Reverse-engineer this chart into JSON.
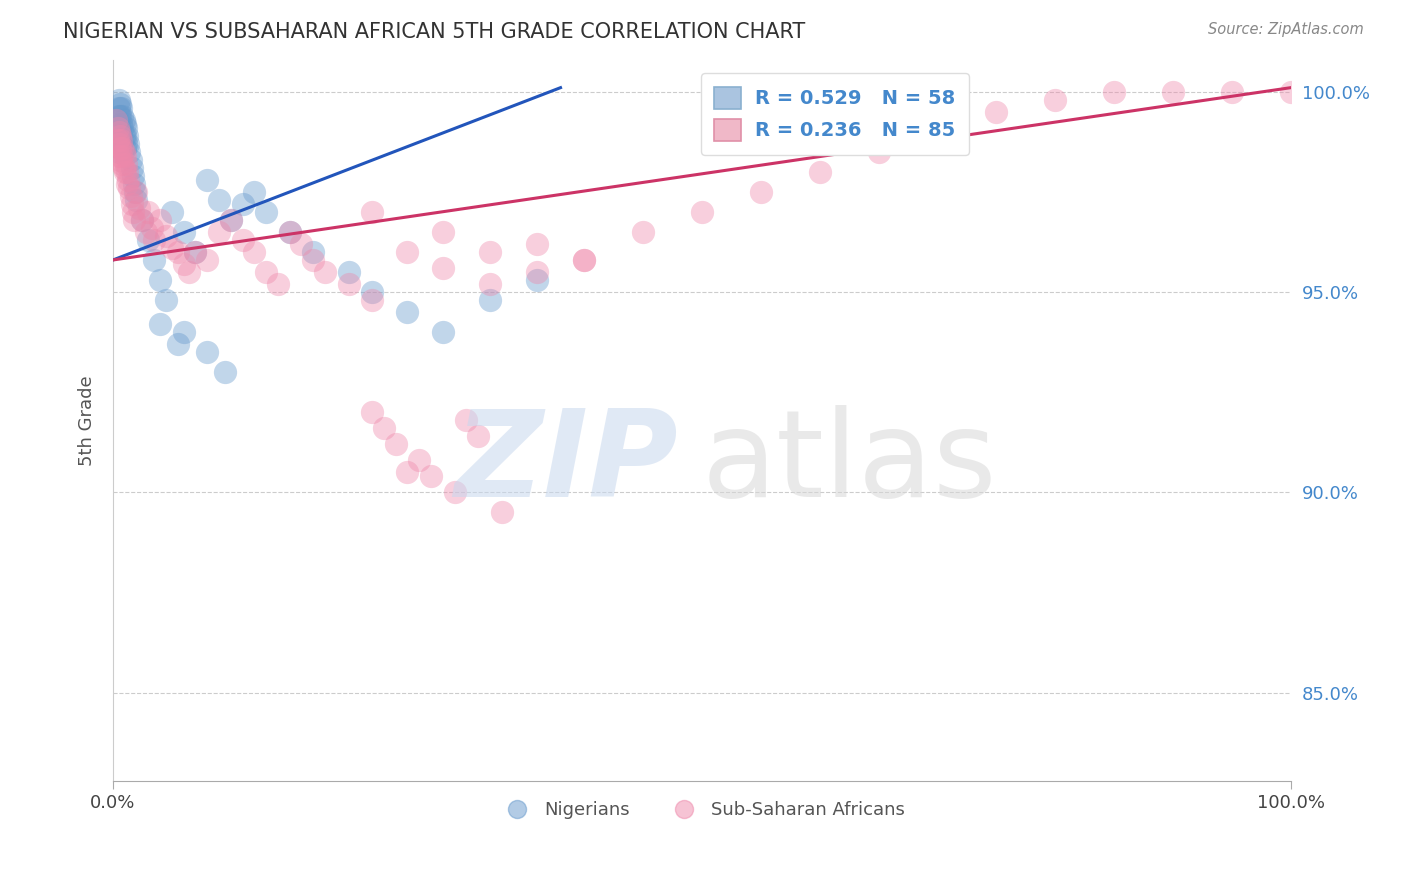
{
  "title": "NIGERIAN VS SUBSAHARAN AFRICAN 5TH GRADE CORRELATION CHART",
  "source_text": "Source: ZipAtlas.com",
  "ylabel": "5th Grade",
  "ytick_labels": [
    "85.0%",
    "90.0%",
    "95.0%",
    "100.0%"
  ],
  "ytick_values": [
    0.85,
    0.9,
    0.95,
    1.0
  ],
  "xlim": [
    0.0,
    1.0
  ],
  "ylim": [
    0.828,
    1.008
  ],
  "legend_bottom": [
    "Nigerians",
    "Sub-Saharan Africans"
  ],
  "blue_color": "#6699cc",
  "pink_color": "#ee88aa",
  "blue_line_color": "#2255bb",
  "pink_line_color": "#cc3366",
  "blue_line": {
    "x0": 0.0,
    "x1": 0.38,
    "y0": 0.958,
    "y1": 1.001
  },
  "pink_line": {
    "x0": 0.0,
    "x1": 1.0,
    "y0": 0.958,
    "y1": 1.001
  },
  "grid_color": "#cccccc",
  "background_color": "#ffffff",
  "R_blue": 0.529,
  "N_blue": 58,
  "R_pink": 0.236,
  "N_pink": 85,
  "blue_x": [
    0.005,
    0.005,
    0.005,
    0.005,
    0.005,
    0.005,
    0.006,
    0.006,
    0.006,
    0.006,
    0.007,
    0.007,
    0.007,
    0.008,
    0.008,
    0.009,
    0.009,
    0.01,
    0.01,
    0.01,
    0.011,
    0.011,
    0.012,
    0.013,
    0.014,
    0.015,
    0.016,
    0.017,
    0.018,
    0.019,
    0.02,
    0.025,
    0.03,
    0.035,
    0.04,
    0.045,
    0.05,
    0.06,
    0.07,
    0.08,
    0.09,
    0.1,
    0.11,
    0.12,
    0.13,
    0.15,
    0.17,
    0.2,
    0.22,
    0.25,
    0.28,
    0.32,
    0.36,
    0.06,
    0.08,
    0.095,
    0.04,
    0.055
  ],
  "blue_y": [
    0.998,
    0.996,
    0.994,
    0.991,
    0.988,
    0.985,
    0.997,
    0.994,
    0.991,
    0.988,
    0.996,
    0.992,
    0.989,
    0.994,
    0.991,
    0.993,
    0.989,
    0.992,
    0.989,
    0.986,
    0.991,
    0.987,
    0.989,
    0.987,
    0.985,
    0.983,
    0.981,
    0.979,
    0.977,
    0.975,
    0.973,
    0.968,
    0.963,
    0.958,
    0.953,
    0.948,
    0.97,
    0.965,
    0.96,
    0.978,
    0.973,
    0.968,
    0.972,
    0.975,
    0.97,
    0.965,
    0.96,
    0.955,
    0.95,
    0.945,
    0.94,
    0.948,
    0.953,
    0.94,
    0.935,
    0.93,
    0.942,
    0.937
  ],
  "pink_x": [
    0.003,
    0.004,
    0.004,
    0.005,
    0.005,
    0.005,
    0.006,
    0.006,
    0.006,
    0.007,
    0.007,
    0.008,
    0.008,
    0.009,
    0.009,
    0.01,
    0.01,
    0.011,
    0.012,
    0.012,
    0.013,
    0.014,
    0.015,
    0.016,
    0.017,
    0.018,
    0.02,
    0.022,
    0.025,
    0.028,
    0.03,
    0.033,
    0.035,
    0.04,
    0.045,
    0.05,
    0.055,
    0.06,
    0.065,
    0.07,
    0.08,
    0.09,
    0.1,
    0.11,
    0.12,
    0.13,
    0.14,
    0.15,
    0.16,
    0.17,
    0.18,
    0.2,
    0.22,
    0.25,
    0.28,
    0.32,
    0.36,
    0.4,
    0.45,
    0.5,
    0.55,
    0.6,
    0.65,
    0.7,
    0.75,
    0.8,
    0.85,
    0.9,
    0.95,
    1.0,
    0.22,
    0.28,
    0.32,
    0.36,
    0.4,
    0.25,
    0.29,
    0.33,
    0.22,
    0.23,
    0.24,
    0.26,
    0.27,
    0.3,
    0.31
  ],
  "pink_y": [
    0.993,
    0.991,
    0.988,
    0.99,
    0.987,
    0.984,
    0.989,
    0.986,
    0.983,
    0.988,
    0.984,
    0.986,
    0.982,
    0.985,
    0.981,
    0.984,
    0.98,
    0.982,
    0.98,
    0.977,
    0.978,
    0.976,
    0.974,
    0.972,
    0.97,
    0.968,
    0.975,
    0.971,
    0.968,
    0.965,
    0.97,
    0.966,
    0.963,
    0.968,
    0.964,
    0.961,
    0.96,
    0.957,
    0.955,
    0.96,
    0.958,
    0.965,
    0.968,
    0.963,
    0.96,
    0.955,
    0.952,
    0.965,
    0.962,
    0.958,
    0.955,
    0.952,
    0.948,
    0.96,
    0.956,
    0.952,
    0.962,
    0.958,
    0.965,
    0.97,
    0.975,
    0.98,
    0.985,
    0.99,
    0.995,
    0.998,
    1.0,
    1.0,
    1.0,
    1.0,
    0.97,
    0.965,
    0.96,
    0.955,
    0.958,
    0.905,
    0.9,
    0.895,
    0.92,
    0.916,
    0.912,
    0.908,
    0.904,
    0.918,
    0.914
  ]
}
